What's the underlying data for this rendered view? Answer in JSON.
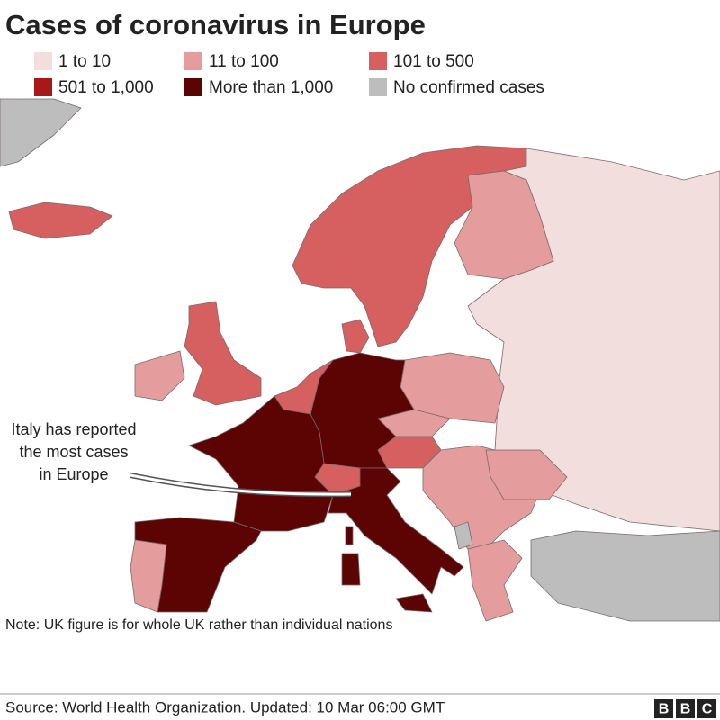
{
  "title": "Cases of coronavirus in Europe",
  "legend": [
    {
      "label": "1 to 10",
      "color": "#f3dede"
    },
    {
      "label": "11 to 100",
      "color": "#e59c9c"
    },
    {
      "label": "101 to 500",
      "color": "#d65f5f"
    },
    {
      "label": "501 to 1,000",
      "color": "#a81818"
    },
    {
      "label": "More than 1,000",
      "color": "#5c0303"
    },
    {
      "label": "No confirmed cases",
      "color": "#bdbdbd"
    }
  ],
  "annotation": [
    "Italy has reported",
    "the most cases",
    "in Europe"
  ],
  "note": "Note: UK figure is for whole UK rather than individual nations",
  "source": "Source: World Health Organization. Updated: 10 Mar 06:00 GMT",
  "logo": [
    "B",
    "B",
    "C"
  ]
}
